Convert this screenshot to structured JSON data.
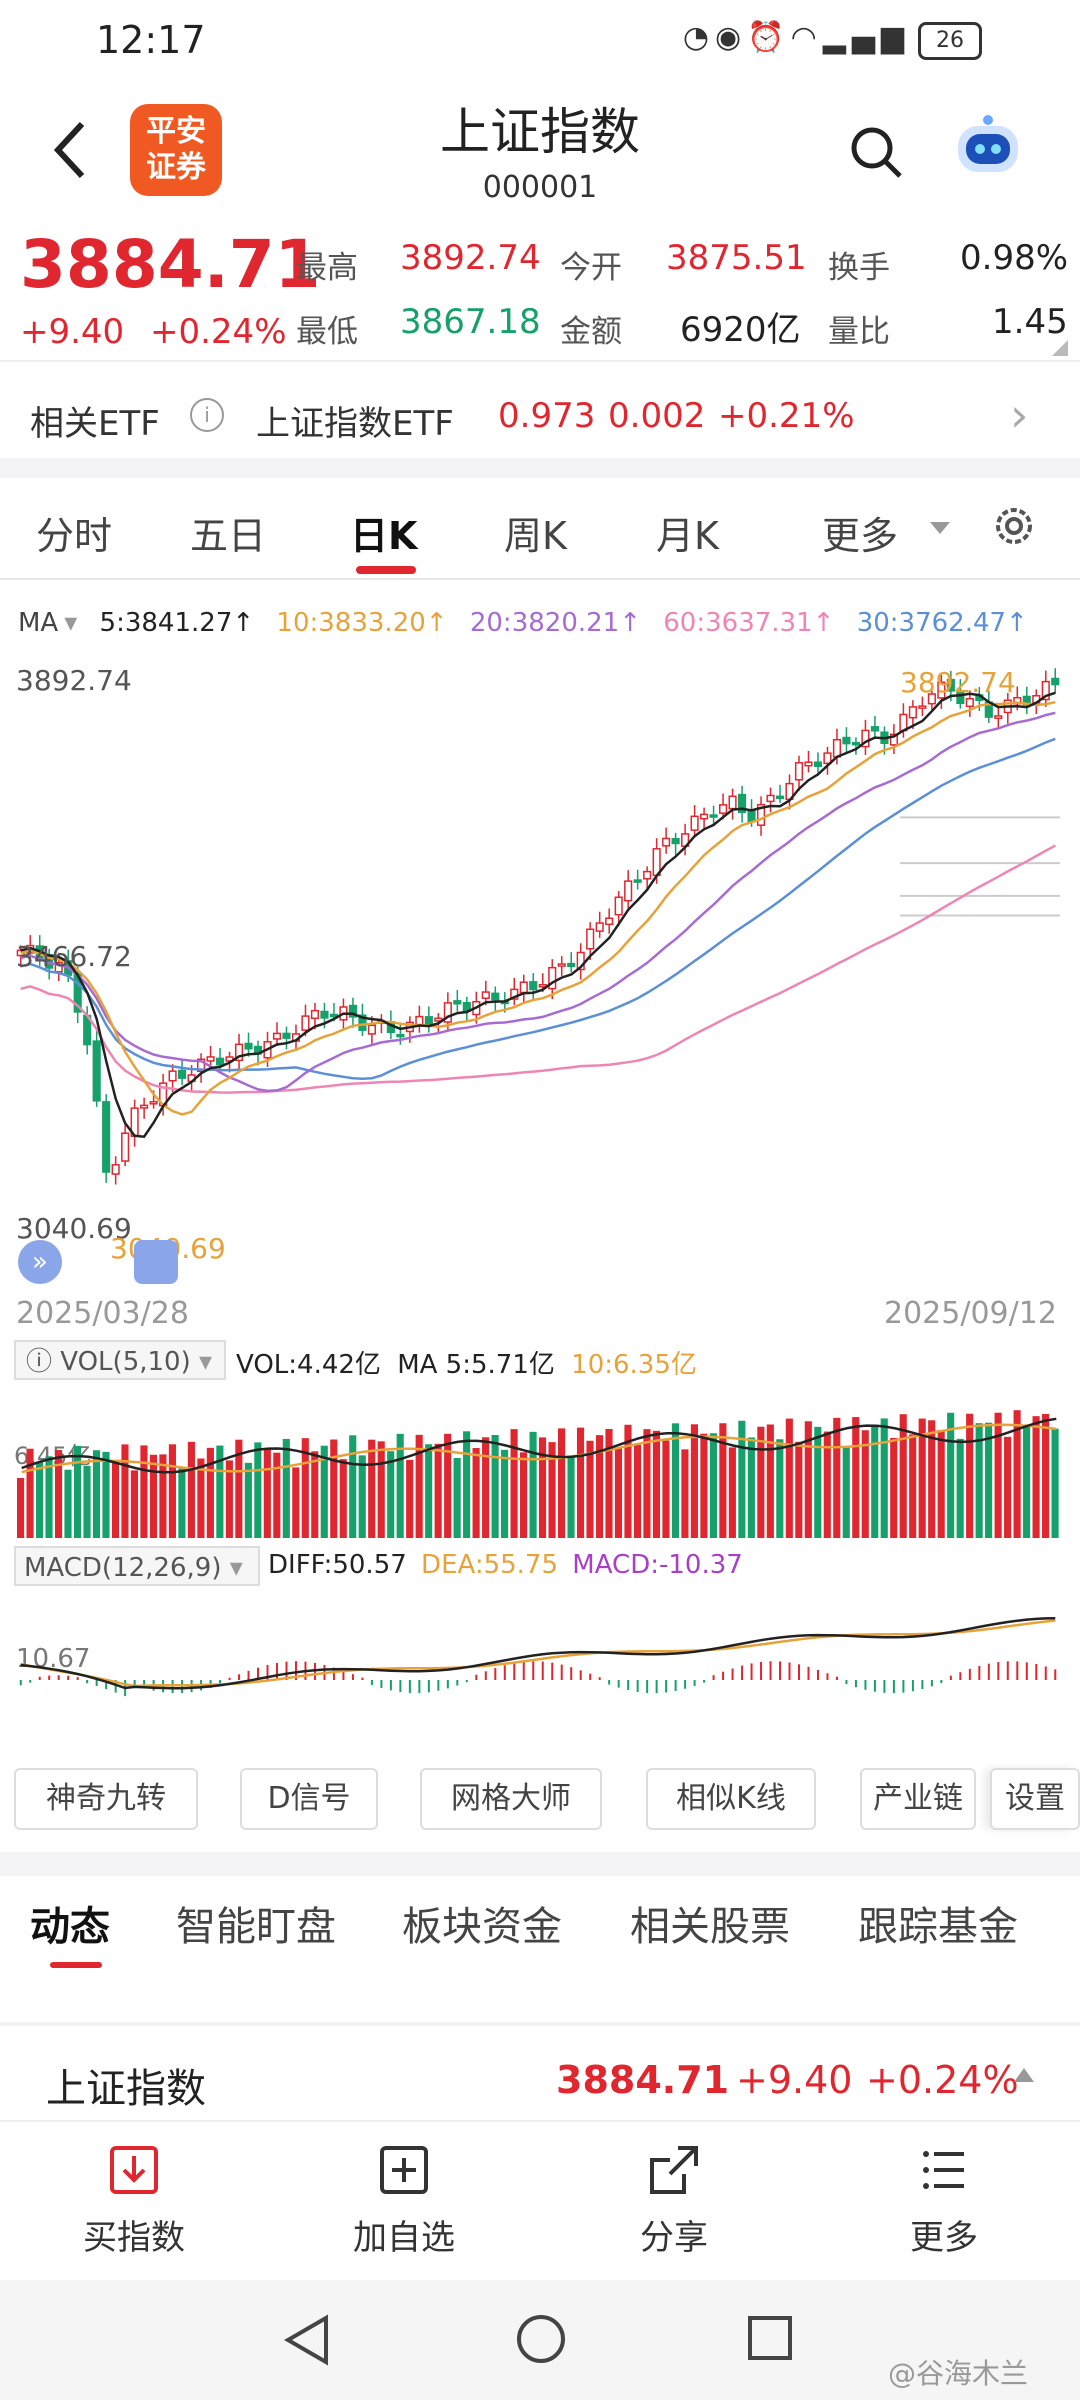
{
  "status": {
    "time": "12:17",
    "battery": "26",
    "signal": "4G"
  },
  "header": {
    "title": "上证指数",
    "code": "000001",
    "logo_text": "平安\n证券"
  },
  "quote": {
    "price": "3884.71",
    "change": "+9.40",
    "change_pct": "+0.24%",
    "high_label": "最高",
    "high": "3892.74",
    "open_label": "今开",
    "open": "3875.51",
    "turnover_label": "换手",
    "turnover": "0.98%",
    "low_label": "最低",
    "low": "3867.18",
    "amount_label": "金额",
    "amount": "6920亿",
    "ratio_label": "量比",
    "ratio": "1.45"
  },
  "etf": {
    "label": "相关ETF",
    "name": "上证指数ETF",
    "price": "0.973",
    "change": "0.002",
    "change_pct": "+0.21%"
  },
  "tabs": [
    "分时",
    "五日",
    "日K",
    "周K",
    "月K",
    "更多"
  ],
  "active_tab": "日K",
  "ma_legend": {
    "label": "MA",
    "ma5": "5:3841.27↑",
    "ma10": "10:3833.20↑",
    "ma20": "20:3820.21↑",
    "ma60": "60:3637.31↑",
    "ma30": "30:3762.47↑"
  },
  "colors": {
    "up": "#e0262f",
    "down": "#16a06a",
    "ma5": "#222222",
    "ma10": "#e8a23a",
    "ma20": "#a76cd1",
    "ma60": "#ee85b4",
    "ma30": "#5b8fd6"
  },
  "chart_data": {
    "type": "candlestick",
    "y_max_label": "3892.74",
    "y_mid_label": "3466.72",
    "y_min_label": "3040.69",
    "high_marker": "3892.74",
    "low_marker": "3040.69",
    "start_date": "2025/03/28",
    "end_date": "2025/09/12",
    "ylim": [
      3040.69,
      3892.74
    ],
    "close_path": [
      3470,
      3460,
      3440,
      3350,
      3110,
      3200,
      3240,
      3270,
      3285,
      3300,
      3310,
      3320,
      3330,
      3355,
      3375,
      3370,
      3355,
      3345,
      3350,
      3365,
      3380,
      3390,
      3395,
      3405,
      3420,
      3440,
      3470,
      3520,
      3560,
      3600,
      3640,
      3660,
      3690,
      3700,
      3680,
      3710,
      3750,
      3770,
      3790,
      3810,
      3800,
      3830,
      3870,
      3880,
      3860,
      3840,
      3855,
      3870,
      3885
    ]
  },
  "vol": {
    "label": "VOL(5,10)",
    "vol": "VOL:4.42亿",
    "ma5": "MA 5:5.71亿",
    "ma10": "10:6.35亿",
    "axis_label": "6.45亿"
  },
  "macd": {
    "label": "MACD(12,26,9)",
    "diff": "DIFF:50.57",
    "dea": "DEA:55.75",
    "macd": "MACD:-10.37",
    "axis_label": "10.67"
  },
  "tools": [
    "神奇九转",
    "D信号",
    "网格大师",
    "相似K线",
    "产业链",
    "设置"
  ],
  "dyn_tabs": [
    "动态",
    "智能盯盘",
    "板块资金",
    "相关股票",
    "跟踪基金"
  ],
  "bottom_quote": {
    "name": "上证指数",
    "price": "3884.71",
    "change": "+9.40",
    "change_pct": "+0.24%"
  },
  "actions": [
    "买指数",
    "加自选",
    "分享",
    "更多"
  ],
  "watermark": "@谷海木兰"
}
